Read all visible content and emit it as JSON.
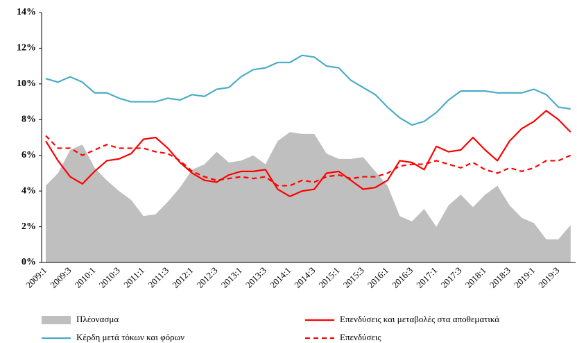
{
  "chart_data": {
    "type": "line",
    "categories": [
      "2009:1",
      null,
      "2009:3",
      null,
      "2010:1",
      null,
      "2010:3",
      null,
      "2011:1",
      null,
      "2011:3",
      null,
      "2012:1",
      null,
      "2012:3",
      null,
      "2013:1",
      null,
      "2013:3",
      null,
      "2014:1",
      null,
      "2014:3",
      null,
      "2015:1",
      null,
      "2015:3",
      null,
      "2016:1",
      null,
      "2016:3",
      null,
      "2017:1",
      null,
      "2017:3",
      null,
      "2018:1",
      null,
      "2018:3",
      null,
      "2019:1",
      null,
      "2019:3",
      null
    ],
    "series": [
      {
        "name": "Πλέονασμα",
        "color": "#bfbfbf",
        "kind": "area",
        "dashed": false,
        "values": [
          4.3,
          5.0,
          6.3,
          6.6,
          5.3,
          4.6,
          4.0,
          3.5,
          2.6,
          2.7,
          3.4,
          4.2,
          5.2,
          5.5,
          6.2,
          5.6,
          5.7,
          6.0,
          5.5,
          6.8,
          7.3,
          7.2,
          7.2,
          6.1,
          5.8,
          5.8,
          5.9,
          5.1,
          4.3,
          2.6,
          2.3,
          3.0,
          2.0,
          3.2,
          3.8,
          3.1,
          3.8,
          4.3,
          3.2,
          2.5,
          2.2,
          1.3,
          1.3,
          2.1
        ]
      },
      {
        "name": "Επενδύσεις και μεταβολές στα αποθεματικά",
        "color": "#ff0000",
        "kind": "line",
        "dashed": false,
        "values": [
          6.8,
          5.7,
          4.8,
          4.4,
          5.1,
          5.7,
          5.8,
          6.1,
          6.9,
          7.0,
          6.4,
          5.6,
          5.0,
          4.6,
          4.5,
          4.9,
          5.1,
          5.1,
          5.2,
          4.1,
          3.7,
          4.0,
          4.1,
          5.0,
          5.1,
          4.6,
          4.1,
          4.2,
          4.6,
          5.7,
          5.6,
          5.2,
          6.5,
          6.2,
          6.3,
          7.0,
          6.3,
          5.7,
          6.8,
          7.5,
          7.9,
          8.5,
          8.0,
          7.3
        ]
      },
      {
        "name": "Κέρδη μετά τόκων και φόρων",
        "color": "#4bacc6",
        "kind": "line",
        "dashed": false,
        "values": [
          10.3,
          10.1,
          10.4,
          10.1,
          9.5,
          9.5,
          9.2,
          9.0,
          9.0,
          9.0,
          9.2,
          9.1,
          9.4,
          9.3,
          9.7,
          9.8,
          10.4,
          10.8,
          10.9,
          11.2,
          11.2,
          11.6,
          11.5,
          11.0,
          10.9,
          10.2,
          9.8,
          9.4,
          8.7,
          8.1,
          7.7,
          7.9,
          8.4,
          9.1,
          9.6,
          9.6,
          9.6,
          9.5,
          9.5,
          9.5,
          9.7,
          9.4,
          8.7,
          8.6
        ]
      },
      {
        "name": "Επενδύσεις",
        "color": "#ff0000",
        "kind": "line",
        "dashed": true,
        "values": [
          7.1,
          6.4,
          6.4,
          6.0,
          6.3,
          6.6,
          6.4,
          6.4,
          6.4,
          6.2,
          6.1,
          5.7,
          5.1,
          4.8,
          4.6,
          4.7,
          4.8,
          4.7,
          4.8,
          4.3,
          4.3,
          4.6,
          4.5,
          4.8,
          4.9,
          4.7,
          4.8,
          4.8,
          5.0,
          5.4,
          5.5,
          5.5,
          5.7,
          5.5,
          5.3,
          5.6,
          5.2,
          5.0,
          5.3,
          5.1,
          5.3,
          5.7,
          5.7,
          6.0
        ]
      }
    ],
    "ylim": [
      0,
      14
    ],
    "yticks": [
      {
        "value": 0,
        "label": "0%"
      },
      {
        "value": 2,
        "label": "2%"
      },
      {
        "value": 4,
        "label": "4%"
      },
      {
        "value": 6,
        "label": "6%"
      },
      {
        "value": 8,
        "label": "8%"
      },
      {
        "value": 10,
        "label": "10%"
      },
      {
        "value": 12,
        "label": "12%"
      },
      {
        "value": 14,
        "label": "14%"
      }
    ],
    "grid": false
  }
}
